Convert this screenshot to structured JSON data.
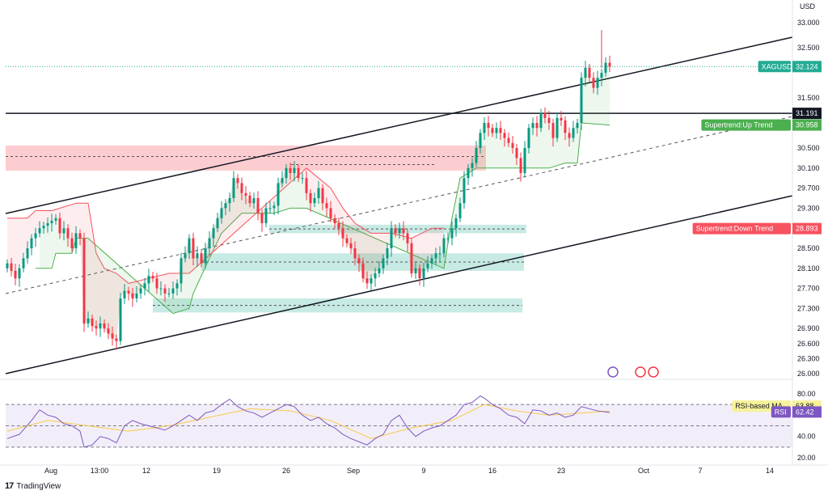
{
  "currency": "USD",
  "chart_data": [
    {
      "type": "candlestick",
      "symbol": "XAGUSD",
      "last_price": "32.124",
      "ylim": [
        26.0,
        33.0
      ],
      "y_ticks": [
        "33.000",
        "32.500",
        "32.100",
        "31.500",
        "30.500",
        "30.100",
        "29.700",
        "29.300",
        "28.900",
        "28.500",
        "28.100",
        "27.700",
        "27.300",
        "26.900",
        "26.600",
        "26.300",
        "26.000"
      ],
      "x_ticks": [
        "Aug",
        "13:00",
        "12",
        "19",
        "26",
        "Sep",
        "9",
        "16",
        "23",
        "Oct",
        "7",
        "14"
      ],
      "grid": false,
      "close_path": [
        [
          0,
          28.2
        ],
        [
          2,
          27.9
        ],
        [
          4,
          28.3
        ],
        [
          6,
          28.7
        ],
        [
          8,
          28.9
        ],
        [
          10,
          29.0
        ],
        [
          12,
          29.1
        ],
        [
          13,
          28.8
        ],
        [
          14,
          28.9
        ],
        [
          15,
          28.7
        ],
        [
          16,
          28.5
        ],
        [
          17,
          28.8
        ],
        [
          18,
          28.7
        ],
        [
          19,
          27.0
        ],
        [
          20,
          27.1
        ],
        [
          21,
          26.95
        ],
        [
          22,
          26.9
        ],
        [
          23,
          27.0
        ],
        [
          24,
          26.9
        ],
        [
          25,
          26.8
        ],
        [
          26,
          26.7
        ],
        [
          27,
          26.65
        ],
        [
          28,
          27.5
        ],
        [
          29,
          27.65
        ],
        [
          30,
          27.6
        ],
        [
          31,
          27.5
        ],
        [
          32,
          27.6
        ],
        [
          33,
          27.7
        ],
        [
          34,
          27.8
        ],
        [
          35,
          27.95
        ],
        [
          36,
          27.9
        ],
        [
          37,
          27.7
        ],
        [
          38,
          27.7
        ],
        [
          39,
          27.6
        ],
        [
          40,
          27.6
        ],
        [
          41,
          27.7
        ],
        [
          42,
          27.8
        ],
        [
          43,
          28.3
        ],
        [
          44,
          28.4
        ],
        [
          45,
          28.7
        ],
        [
          46,
          28.3
        ],
        [
          47,
          28.4
        ],
        [
          48,
          28.2
        ],
        [
          49,
          28.5
        ],
        [
          50,
          28.7
        ],
        [
          51,
          28.9
        ],
        [
          52,
          29.1
        ],
        [
          53,
          29.3
        ],
        [
          54,
          29.4
        ],
        [
          55,
          29.5
        ],
        [
          56,
          29.9
        ],
        [
          57,
          29.8
        ],
        [
          58,
          29.6
        ],
        [
          59,
          29.55
        ],
        [
          60,
          29.4
        ],
        [
          61,
          29.5
        ],
        [
          62,
          29.2
        ],
        [
          63,
          29.0
        ],
        [
          64,
          29.3
        ],
        [
          65,
          29.3
        ],
        [
          66,
          29.35
        ],
        [
          67,
          29.8
        ],
        [
          68,
          29.9
        ],
        [
          69,
          30.1
        ],
        [
          70,
          30.0
        ],
        [
          71,
          30.1
        ],
        [
          72,
          29.9
        ],
        [
          73,
          29.9
        ],
        [
          74,
          29.6
        ],
        [
          75,
          29.4
        ],
        [
          76,
          29.5
        ],
        [
          77,
          29.7
        ],
        [
          78,
          29.4
        ],
        [
          79,
          29.3
        ],
        [
          80,
          29.1
        ],
        [
          81,
          29.0
        ],
        [
          82,
          28.9
        ],
        [
          83,
          28.7
        ],
        [
          84,
          28.6
        ],
        [
          85,
          28.5
        ],
        [
          86,
          28.3
        ],
        [
          87,
          28.2
        ],
        [
          88,
          27.9
        ],
        [
          89,
          27.8
        ],
        [
          90,
          27.9
        ],
        [
          91,
          28.0
        ],
        [
          92,
          28.1
        ],
        [
          93,
          28.3
        ],
        [
          94,
          28.5
        ],
        [
          95,
          28.9
        ],
        [
          96,
          28.8
        ],
        [
          97,
          28.9
        ],
        [
          98,
          28.8
        ],
        [
          99,
          28.6
        ],
        [
          100,
          28.0
        ],
        [
          101,
          28.1
        ],
        [
          102,
          27.9
        ],
        [
          103,
          28.1
        ],
        [
          104,
          28.2
        ],
        [
          105,
          28.3
        ],
        [
          106,
          28.4
        ],
        [
          107,
          28.4
        ],
        [
          108,
          28.7
        ],
        [
          109,
          28.7
        ],
        [
          110,
          28.9
        ],
        [
          111,
          29.1
        ],
        [
          112,
          29.4
        ],
        [
          113,
          29.9
        ],
        [
          114,
          30.1
        ],
        [
          115,
          30.2
        ],
        [
          116,
          30.5
        ],
        [
          117,
          30.8
        ],
        [
          118,
          31.0
        ],
        [
          119,
          30.9
        ],
        [
          120,
          30.8
        ],
        [
          121,
          30.9
        ],
        [
          122,
          30.8
        ],
        [
          123,
          30.7
        ],
        [
          124,
          30.6
        ],
        [
          125,
          30.5
        ],
        [
          126,
          30.3
        ],
        [
          127,
          30.0
        ],
        [
          128,
          30.5
        ],
        [
          129,
          30.9
        ],
        [
          130,
          31.0
        ],
        [
          131,
          30.9
        ],
        [
          132,
          31.2
        ],
        [
          133,
          31.1
        ],
        [
          134,
          31.0
        ],
        [
          135,
          30.7
        ],
        [
          136,
          31.1
        ],
        [
          137,
          31.05
        ],
        [
          138,
          30.8
        ],
        [
          139,
          30.7
        ],
        [
          140,
          30.9
        ],
        [
          141,
          31.0
        ],
        [
          142,
          31.9
        ],
        [
          143,
          32.1
        ],
        [
          144,
          31.9
        ],
        [
          145,
          31.7
        ],
        [
          146,
          31.9
        ],
        [
          147,
          32.0
        ],
        [
          148,
          32.2
        ],
        [
          149,
          32.124
        ]
      ]
    },
    {
      "type": "line",
      "name": "Supertrend:Up Trend",
      "value_label": "30.958",
      "color": "#4caf50",
      "points": [
        [
          7,
          28.1
        ],
        [
          11,
          28.1
        ],
        [
          12,
          28.4
        ],
        [
          16,
          28.4
        ],
        [
          17,
          28.7
        ],
        [
          20,
          28.7
        ],
        [
          41,
          27.2
        ],
        [
          45,
          27.3
        ],
        [
          46,
          27.6
        ],
        [
          50,
          28.3
        ],
        [
          53,
          28.8
        ],
        [
          58,
          29.2
        ],
        [
          63,
          29.2
        ],
        [
          66,
          29.2
        ],
        [
          70,
          29.3
        ],
        [
          74,
          29.3
        ],
        [
          108,
          28.1
        ],
        [
          110,
          29.1
        ],
        [
          112,
          29.9
        ],
        [
          116,
          30.1
        ],
        [
          120,
          30.1
        ],
        [
          126,
          30.1
        ],
        [
          128,
          30.1
        ],
        [
          134,
          30.1
        ],
        [
          138,
          30.2
        ],
        [
          141,
          30.2
        ],
        [
          142,
          31.0
        ],
        [
          149,
          30.958
        ]
      ]
    },
    {
      "type": "line",
      "name": "Supertrend:Down Trend",
      "value_label": "28.893",
      "color": "#f7525f",
      "points": [
        [
          0,
          29.1
        ],
        [
          5,
          29.1
        ],
        [
          7,
          29.25
        ],
        [
          11,
          29.25
        ],
        [
          17,
          29.4
        ],
        [
          20,
          29.4
        ],
        [
          22,
          28.4
        ],
        [
          24,
          28.1
        ],
        [
          27,
          28.0
        ],
        [
          30,
          27.8
        ],
        [
          35,
          27.9
        ],
        [
          40,
          28.0
        ],
        [
          45,
          28.0
        ],
        [
          74,
          30.1
        ],
        [
          80,
          29.7
        ],
        [
          83,
          29.3
        ],
        [
          86,
          29.0
        ],
        [
          90,
          28.8
        ],
        [
          95,
          28.8
        ],
        [
          100,
          28.7
        ],
        [
          105,
          28.9
        ],
        [
          108,
          28.9
        ]
      ]
    },
    {
      "type": "line",
      "name": "RSI",
      "value_label": "62.42",
      "color": "#7e57c2",
      "ylim": [
        20,
        90
      ],
      "y_ticks": [
        "80.00",
        "60.00",
        "40.00",
        "20.00"
      ],
      "bands": [
        70,
        50,
        30
      ],
      "points": [
        [
          0,
          38
        ],
        [
          3,
          42
        ],
        [
          6,
          55
        ],
        [
          8,
          65
        ],
        [
          10,
          60
        ],
        [
          12,
          58
        ],
        [
          14,
          52
        ],
        [
          16,
          50
        ],
        [
          18,
          45
        ],
        [
          19,
          30
        ],
        [
          21,
          32
        ],
        [
          23,
          40
        ],
        [
          25,
          38
        ],
        [
          27,
          34
        ],
        [
          29,
          50
        ],
        [
          31,
          55
        ],
        [
          33,
          52
        ],
        [
          35,
          50
        ],
        [
          37,
          48
        ],
        [
          39,
          46
        ],
        [
          41,
          50
        ],
        [
          43,
          55
        ],
        [
          45,
          60
        ],
        [
          47,
          55
        ],
        [
          49,
          62
        ],
        [
          51,
          64
        ],
        [
          53,
          70
        ],
        [
          55,
          75
        ],
        [
          57,
          68
        ],
        [
          59,
          64
        ],
        [
          61,
          62
        ],
        [
          63,
          58
        ],
        [
          65,
          62
        ],
        [
          67,
          66
        ],
        [
          69,
          70
        ],
        [
          71,
          68
        ],
        [
          73,
          60
        ],
        [
          75,
          55
        ],
        [
          77,
          58
        ],
        [
          79,
          52
        ],
        [
          81,
          48
        ],
        [
          83,
          42
        ],
        [
          85,
          38
        ],
        [
          87,
          35
        ],
        [
          89,
          32
        ],
        [
          91,
          38
        ],
        [
          93,
          42
        ],
        [
          95,
          55
        ],
        [
          97,
          60
        ],
        [
          99,
          48
        ],
        [
          101,
          40
        ],
        [
          103,
          45
        ],
        [
          105,
          48
        ],
        [
          107,
          50
        ],
        [
          109,
          55
        ],
        [
          111,
          60
        ],
        [
          113,
          70
        ],
        [
          115,
          72
        ],
        [
          117,
          78
        ],
        [
          118,
          76
        ],
        [
          120,
          70
        ],
        [
          122,
          66
        ],
        [
          124,
          60
        ],
        [
          126,
          58
        ],
        [
          128,
          52
        ],
        [
          130,
          65
        ],
        [
          132,
          64
        ],
        [
          134,
          60
        ],
        [
          136,
          62
        ],
        [
          138,
          58
        ],
        [
          140,
          60
        ],
        [
          142,
          68
        ],
        [
          144,
          66
        ],
        [
          146,
          64
        ],
        [
          148,
          63
        ],
        [
          149,
          62.42
        ]
      ]
    },
    {
      "type": "line",
      "name": "RSI-based MA",
      "value_label": "63.88",
      "color": "#f7c948",
      "points": [
        [
          0,
          45
        ],
        [
          10,
          55
        ],
        [
          20,
          50
        ],
        [
          30,
          45
        ],
        [
          40,
          50
        ],
        [
          50,
          58
        ],
        [
          60,
          66
        ],
        [
          70,
          64
        ],
        [
          80,
          55
        ],
        [
          90,
          38
        ],
        [
          100,
          48
        ],
        [
          110,
          55
        ],
        [
          118,
          70
        ],
        [
          126,
          64
        ],
        [
          134,
          60
        ],
        [
          142,
          62
        ],
        [
          149,
          63.88
        ]
      ]
    }
  ],
  "levels": [
    {
      "name": "horizontal-level",
      "label": "31.191",
      "value": 31.191
    }
  ],
  "brand": "TradingView"
}
